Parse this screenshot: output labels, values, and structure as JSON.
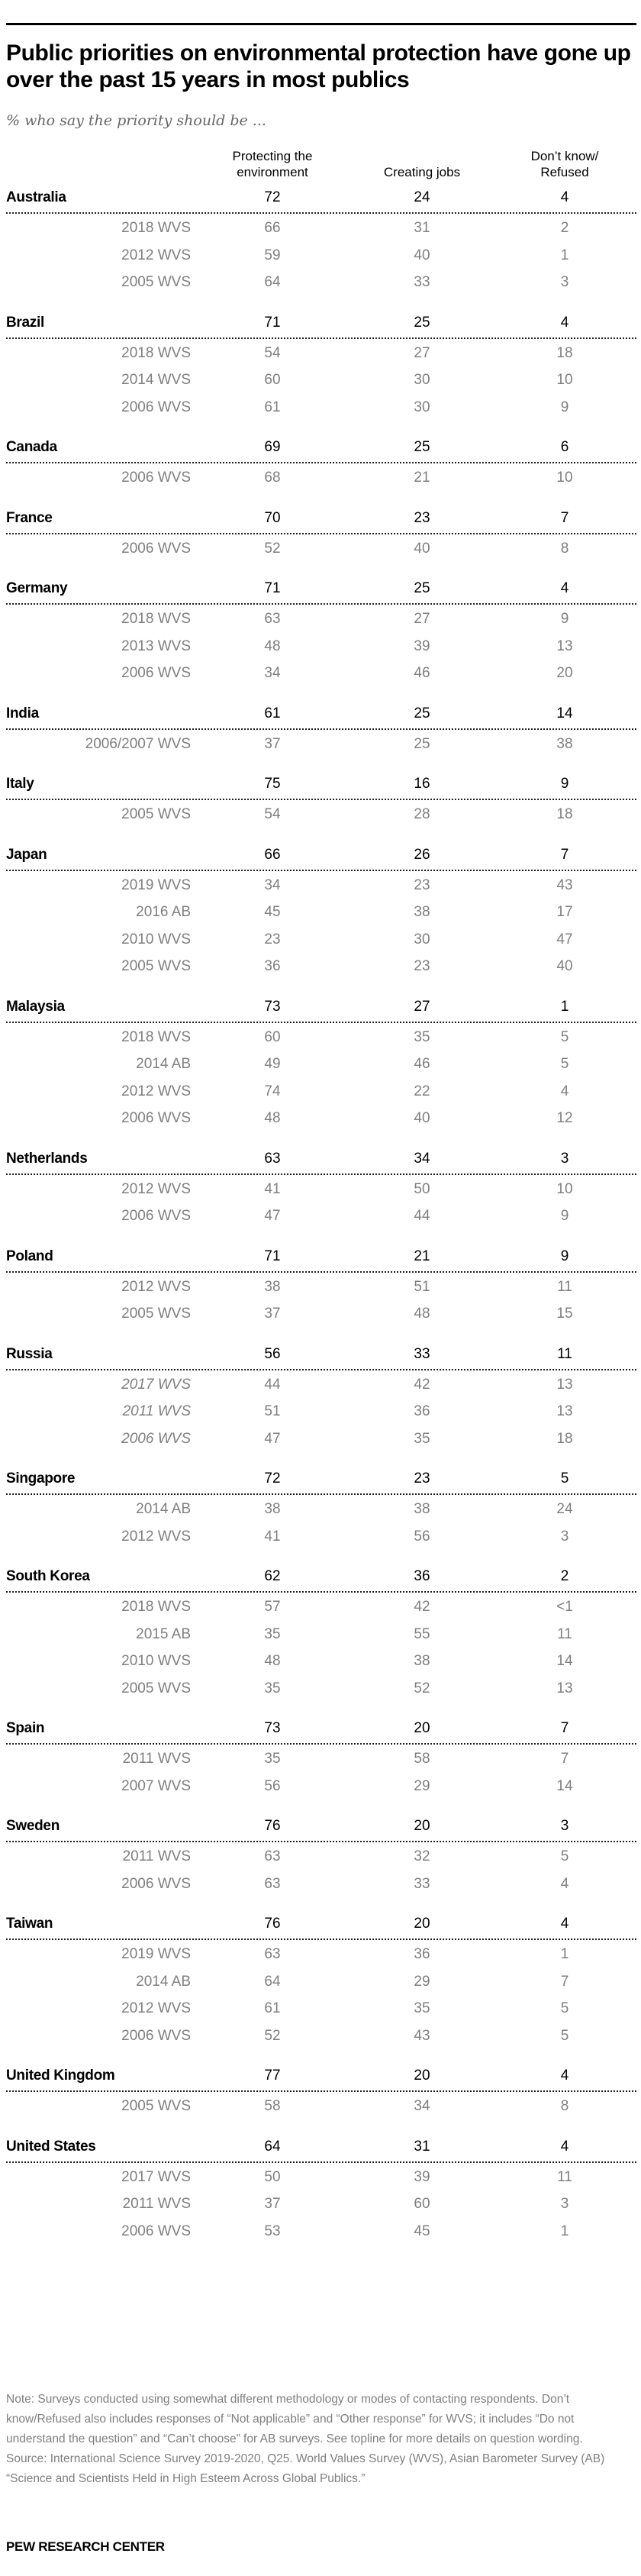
{
  "title": "Public priorities on environmental protection have gone up over the past 15 years in most publics",
  "subtitle": "% who say the priority should be ...",
  "columns": {
    "c1_line1": "Protecting the",
    "c1_line2": "environment",
    "c2": "Creating jobs",
    "c3_line1": "Don’t know/",
    "c3_line2": "Refused"
  },
  "rows": [
    {
      "country": "Australia",
      "values": [
        "72",
        "24",
        "4"
      ],
      "subs": [
        {
          "label": "2018 WVS",
          "values": [
            "66",
            "31",
            "2"
          ]
        },
        {
          "label": "2012 WVS",
          "values": [
            "59",
            "40",
            "1"
          ]
        },
        {
          "label": "2005 WVS",
          "values": [
            "64",
            "33",
            "3"
          ]
        }
      ]
    },
    {
      "country": "Brazil",
      "values": [
        "71",
        "25",
        "4"
      ],
      "subs": [
        {
          "label": "2018 WVS",
          "values": [
            "54",
            "27",
            "18"
          ]
        },
        {
          "label": "2014 WVS",
          "values": [
            "60",
            "30",
            "10"
          ]
        },
        {
          "label": "2006 WVS",
          "values": [
            "61",
            "30",
            "9"
          ]
        }
      ]
    },
    {
      "country": "Canada",
      "values": [
        "69",
        "25",
        "6"
      ],
      "subs": [
        {
          "label": "2006 WVS",
          "values": [
            "68",
            "21",
            "10"
          ]
        }
      ]
    },
    {
      "country": "France",
      "values": [
        "70",
        "23",
        "7"
      ],
      "subs": [
        {
          "label": "2006 WVS",
          "values": [
            "52",
            "40",
            "8"
          ]
        }
      ]
    },
    {
      "country": "Germany",
      "values": [
        "71",
        "25",
        "4"
      ],
      "subs": [
        {
          "label": "2018 WVS",
          "values": [
            "63",
            "27",
            "9"
          ]
        },
        {
          "label": "2013 WVS",
          "values": [
            "48",
            "39",
            "13"
          ]
        },
        {
          "label": "2006 WVS",
          "values": [
            "34",
            "46",
            "20"
          ]
        }
      ]
    },
    {
      "country": "India",
      "values": [
        "61",
        "25",
        "14"
      ],
      "subs": [
        {
          "label": "2006/2007 WVS",
          "values": [
            "37",
            "25",
            "38"
          ]
        }
      ]
    },
    {
      "country": "Italy",
      "values": [
        "75",
        "16",
        "9"
      ],
      "subs": [
        {
          "label": "2005 WVS",
          "values": [
            "54",
            "28",
            "18"
          ]
        }
      ]
    },
    {
      "country": "Japan",
      "values": [
        "66",
        "26",
        "7"
      ],
      "subs": [
        {
          "label": "2019 WVS",
          "values": [
            "34",
            "23",
            "43"
          ]
        },
        {
          "label": "2016 AB",
          "values": [
            "45",
            "38",
            "17"
          ]
        },
        {
          "label": "2010 WVS",
          "values": [
            "23",
            "30",
            "47"
          ]
        },
        {
          "label": "2005 WVS",
          "values": [
            "36",
            "23",
            "40"
          ]
        }
      ]
    },
    {
      "country": "Malaysia",
      "values": [
        "73",
        "27",
        "1"
      ],
      "subs": [
        {
          "label": "2018 WVS",
          "values": [
            "60",
            "35",
            "5"
          ]
        },
        {
          "label": "2014 AB",
          "values": [
            "49",
            "46",
            "5"
          ]
        },
        {
          "label": "2012 WVS",
          "values": [
            "74",
            "22",
            "4"
          ]
        },
        {
          "label": "2006 WVS",
          "values": [
            "48",
            "40",
            "12"
          ]
        }
      ]
    },
    {
      "country": "Netherlands",
      "values": [
        "63",
        "34",
        "3"
      ],
      "subs": [
        {
          "label": "2012 WVS",
          "values": [
            "41",
            "50",
            "10"
          ]
        },
        {
          "label": "2006 WVS",
          "values": [
            "47",
            "44",
            "9"
          ]
        }
      ]
    },
    {
      "country": "Poland",
      "values": [
        "71",
        "21",
        "9"
      ],
      "subs": [
        {
          "label": "2012 WVS",
          "values": [
            "38",
            "51",
            "11"
          ]
        },
        {
          "label": "2005 WVS",
          "values": [
            "37",
            "48",
            "15"
          ]
        }
      ]
    },
    {
      "country": "Russia",
      "italic": true,
      "values": [
        "56",
        "33",
        "11"
      ],
      "subs": [
        {
          "label": "2017 WVS",
          "values": [
            "44",
            "42",
            "13"
          ]
        },
        {
          "label": "2011 WVS",
          "values": [
            "51",
            "36",
            "13"
          ]
        },
        {
          "label": "2006 WVS",
          "values": [
            "47",
            "35",
            "18"
          ]
        }
      ]
    },
    {
      "country": "Singapore",
      "values": [
        "72",
        "23",
        "5"
      ],
      "subs": [
        {
          "label": "2014 AB",
          "values": [
            "38",
            "38",
            "24"
          ]
        },
        {
          "label": "2012 WVS",
          "values": [
            "41",
            "56",
            "3"
          ]
        }
      ]
    },
    {
      "country": "South Korea",
      "values": [
        "62",
        "36",
        "2"
      ],
      "subs": [
        {
          "label": "2018 WVS",
          "values": [
            "57",
            "42",
            "<1"
          ]
        },
        {
          "label": "2015 AB",
          "values": [
            "35",
            "55",
            "11"
          ]
        },
        {
          "label": "2010 WVS",
          "values": [
            "48",
            "38",
            "14"
          ]
        },
        {
          "label": "2005 WVS",
          "values": [
            "35",
            "52",
            "13"
          ]
        }
      ]
    },
    {
      "country": "Spain",
      "values": [
        "73",
        "20",
        "7"
      ],
      "subs": [
        {
          "label": "2011 WVS",
          "values": [
            "35",
            "58",
            "7"
          ]
        },
        {
          "label": "2007 WVS",
          "values": [
            "56",
            "29",
            "14"
          ]
        }
      ]
    },
    {
      "country": "Sweden",
      "values": [
        "76",
        "20",
        "3"
      ],
      "subs": [
        {
          "label": "2011 WVS",
          "values": [
            "63",
            "32",
            "5"
          ]
        },
        {
          "label": "2006 WVS",
          "values": [
            "63",
            "33",
            "4"
          ]
        }
      ]
    },
    {
      "country": "Taiwan",
      "values": [
        "76",
        "20",
        "4"
      ],
      "subs": [
        {
          "label": "2019 WVS",
          "values": [
            "63",
            "36",
            "1"
          ]
        },
        {
          "label": "2014 AB",
          "values": [
            "64",
            "29",
            "7"
          ]
        },
        {
          "label": "2012 WVS",
          "values": [
            "61",
            "35",
            "5"
          ]
        },
        {
          "label": "2006 WVS",
          "values": [
            "52",
            "43",
            "5"
          ]
        }
      ]
    },
    {
      "country": "United Kingdom",
      "values": [
        "77",
        "20",
        "4"
      ],
      "subs": [
        {
          "label": "2005 WVS",
          "values": [
            "58",
            "34",
            "8"
          ]
        }
      ]
    },
    {
      "country": "United States",
      "values": [
        "64",
        "31",
        "4"
      ],
      "subs": [
        {
          "label": "2017 WVS",
          "values": [
            "50",
            "39",
            "11"
          ]
        },
        {
          "label": "2011 WVS",
          "values": [
            "37",
            "60",
            "3"
          ]
        },
        {
          "label": "2006 WVS",
          "values": [
            "53",
            "45",
            "1"
          ]
        }
      ]
    }
  ],
  "footer": {
    "note": "Note: Surveys conducted using somewhat different methodology or modes of contacting respondents. Don’t know/Refused also includes responses of “Not applicable” and “Other response” for WVS; it includes “Do not understand the question” and “Can’t choose” for AB surveys. See topline for more details on question wording.",
    "source": "Source: International Science Survey 2019-2020, Q25. World Values Survey (WVS), Asian Barometer Survey (AB)",
    "report": "“Science and Scientists Held in High Esteem Across Global Publics.”",
    "brand": "PEW RESEARCH CENTER"
  },
  "chart_data": {
    "type": "table",
    "title": "Public priorities on environmental protection have gone up over the past 15 years in most publics",
    "subtitle": "% who say the priority should be ...",
    "columns": [
      "Protecting the environment",
      "Creating jobs",
      "Don't know/Refused"
    ],
    "rows": [
      {
        "name": "Australia",
        "values": [
          72,
          24,
          4
        ]
      },
      {
        "name": "Australia 2018 WVS",
        "values": [
          66,
          31,
          2
        ]
      },
      {
        "name": "Australia 2012 WVS",
        "values": [
          59,
          40,
          1
        ]
      },
      {
        "name": "Australia 2005 WVS",
        "values": [
          64,
          33,
          3
        ]
      },
      {
        "name": "Brazil",
        "values": [
          71,
          25,
          4
        ]
      },
      {
        "name": "Brazil 2018 WVS",
        "values": [
          54,
          27,
          18
        ]
      },
      {
        "name": "Brazil 2014 WVS",
        "values": [
          60,
          30,
          10
        ]
      },
      {
        "name": "Brazil 2006 WVS",
        "values": [
          61,
          30,
          9
        ]
      },
      {
        "name": "Canada",
        "values": [
          69,
          25,
          6
        ]
      },
      {
        "name": "Canada 2006 WVS",
        "values": [
          68,
          21,
          10
        ]
      },
      {
        "name": "France",
        "values": [
          70,
          23,
          7
        ]
      },
      {
        "name": "France 2006 WVS",
        "values": [
          52,
          40,
          8
        ]
      },
      {
        "name": "Germany",
        "values": [
          71,
          25,
          4
        ]
      },
      {
        "name": "Germany 2018 WVS",
        "values": [
          63,
          27,
          9
        ]
      },
      {
        "name": "Germany 2013 WVS",
        "values": [
          48,
          39,
          13
        ]
      },
      {
        "name": "Germany 2006 WVS",
        "values": [
          34,
          46,
          20
        ]
      },
      {
        "name": "India",
        "values": [
          61,
          25,
          14
        ]
      },
      {
        "name": "India 2006/2007 WVS",
        "values": [
          37,
          25,
          38
        ]
      },
      {
        "name": "Italy",
        "values": [
          75,
          16,
          9
        ]
      },
      {
        "name": "Italy 2005 WVS",
        "values": [
          54,
          28,
          18
        ]
      },
      {
        "name": "Japan",
        "values": [
          66,
          26,
          7
        ]
      },
      {
        "name": "Japan 2019 WVS",
        "values": [
          34,
          23,
          43
        ]
      },
      {
        "name": "Japan 2016 AB",
        "values": [
          45,
          38,
          17
        ]
      },
      {
        "name": "Japan 2010 WVS",
        "values": [
          23,
          30,
          47
        ]
      },
      {
        "name": "Japan 2005 WVS",
        "values": [
          36,
          23,
          40
        ]
      },
      {
        "name": "Malaysia",
        "values": [
          73,
          27,
          1
        ]
      },
      {
        "name": "Malaysia 2018 WVS",
        "values": [
          60,
          35,
          5
        ]
      },
      {
        "name": "Malaysia 2014 AB",
        "values": [
          49,
          46,
          5
        ]
      },
      {
        "name": "Malaysia 2012 WVS",
        "values": [
          74,
          22,
          4
        ]
      },
      {
        "name": "Malaysia 2006 WVS",
        "values": [
          48,
          40,
          12
        ]
      },
      {
        "name": "Netherlands",
        "values": [
          63,
          34,
          3
        ]
      },
      {
        "name": "Netherlands 2012 WVS",
        "values": [
          41,
          50,
          10
        ]
      },
      {
        "name": "Netherlands 2006 WVS",
        "values": [
          47,
          44,
          9
        ]
      },
      {
        "name": "Poland",
        "values": [
          71,
          21,
          9
        ]
      },
      {
        "name": "Poland 2012 WVS",
        "values": [
          38,
          51,
          11
        ]
      },
      {
        "name": "Poland 2005 WVS",
        "values": [
          37,
          48,
          15
        ]
      },
      {
        "name": "Russia",
        "values": [
          56,
          33,
          11
        ]
      },
      {
        "name": "Russia 2017 WVS",
        "values": [
          44,
          42,
          13
        ]
      },
      {
        "name": "Russia 2011 WVS",
        "values": [
          51,
          36,
          13
        ]
      },
      {
        "name": "Russia 2006 WVS",
        "values": [
          47,
          35,
          18
        ]
      },
      {
        "name": "Singapore",
        "values": [
          72,
          23,
          5
        ]
      },
      {
        "name": "Singapore 2014 AB",
        "values": [
          38,
          38,
          24
        ]
      },
      {
        "name": "Singapore 2012 WVS",
        "values": [
          41,
          56,
          3
        ]
      },
      {
        "name": "South Korea",
        "values": [
          62,
          36,
          2
        ]
      },
      {
        "name": "South Korea 2018 WVS",
        "values": [
          57,
          42,
          "<1"
        ]
      },
      {
        "name": "South Korea 2015 AB",
        "values": [
          35,
          55,
          11
        ]
      },
      {
        "name": "South Korea 2010 WVS",
        "values": [
          48,
          38,
          14
        ]
      },
      {
        "name": "South Korea 2005 WVS",
        "values": [
          35,
          52,
          13
        ]
      },
      {
        "name": "Spain",
        "values": [
          73,
          20,
          7
        ]
      },
      {
        "name": "Spain 2011 WVS",
        "values": [
          35,
          58,
          7
        ]
      },
      {
        "name": "Spain 2007 WVS",
        "values": [
          56,
          29,
          14
        ]
      },
      {
        "name": "Sweden",
        "values": [
          76,
          20,
          3
        ]
      },
      {
        "name": "Sweden 2011 WVS",
        "values": [
          63,
          32,
          5
        ]
      },
      {
        "name": "Sweden 2006 WVS",
        "values": [
          63,
          33,
          4
        ]
      },
      {
        "name": "Taiwan",
        "values": [
          76,
          20,
          4
        ]
      },
      {
        "name": "Taiwan 2019 WVS",
        "values": [
          63,
          36,
          1
        ]
      },
      {
        "name": "Taiwan 2014 AB",
        "values": [
          64,
          29,
          7
        ]
      },
      {
        "name": "Taiwan 2012 WVS",
        "values": [
          61,
          35,
          5
        ]
      },
      {
        "name": "Taiwan 2006 WVS",
        "values": [
          52,
          43,
          5
        ]
      },
      {
        "name": "United Kingdom",
        "values": [
          77,
          20,
          4
        ]
      },
      {
        "name": "United Kingdom 2005 WVS",
        "values": [
          58,
          34,
          8
        ]
      },
      {
        "name": "United States",
        "values": [
          64,
          31,
          4
        ]
      },
      {
        "name": "United States 2017 WVS",
        "values": [
          50,
          39,
          11
        ]
      },
      {
        "name": "United States 2011 WVS",
        "values": [
          37,
          60,
          3
        ]
      },
      {
        "name": "United States 2006 WVS",
        "values": [
          53,
          45,
          1
        ]
      }
    ]
  }
}
